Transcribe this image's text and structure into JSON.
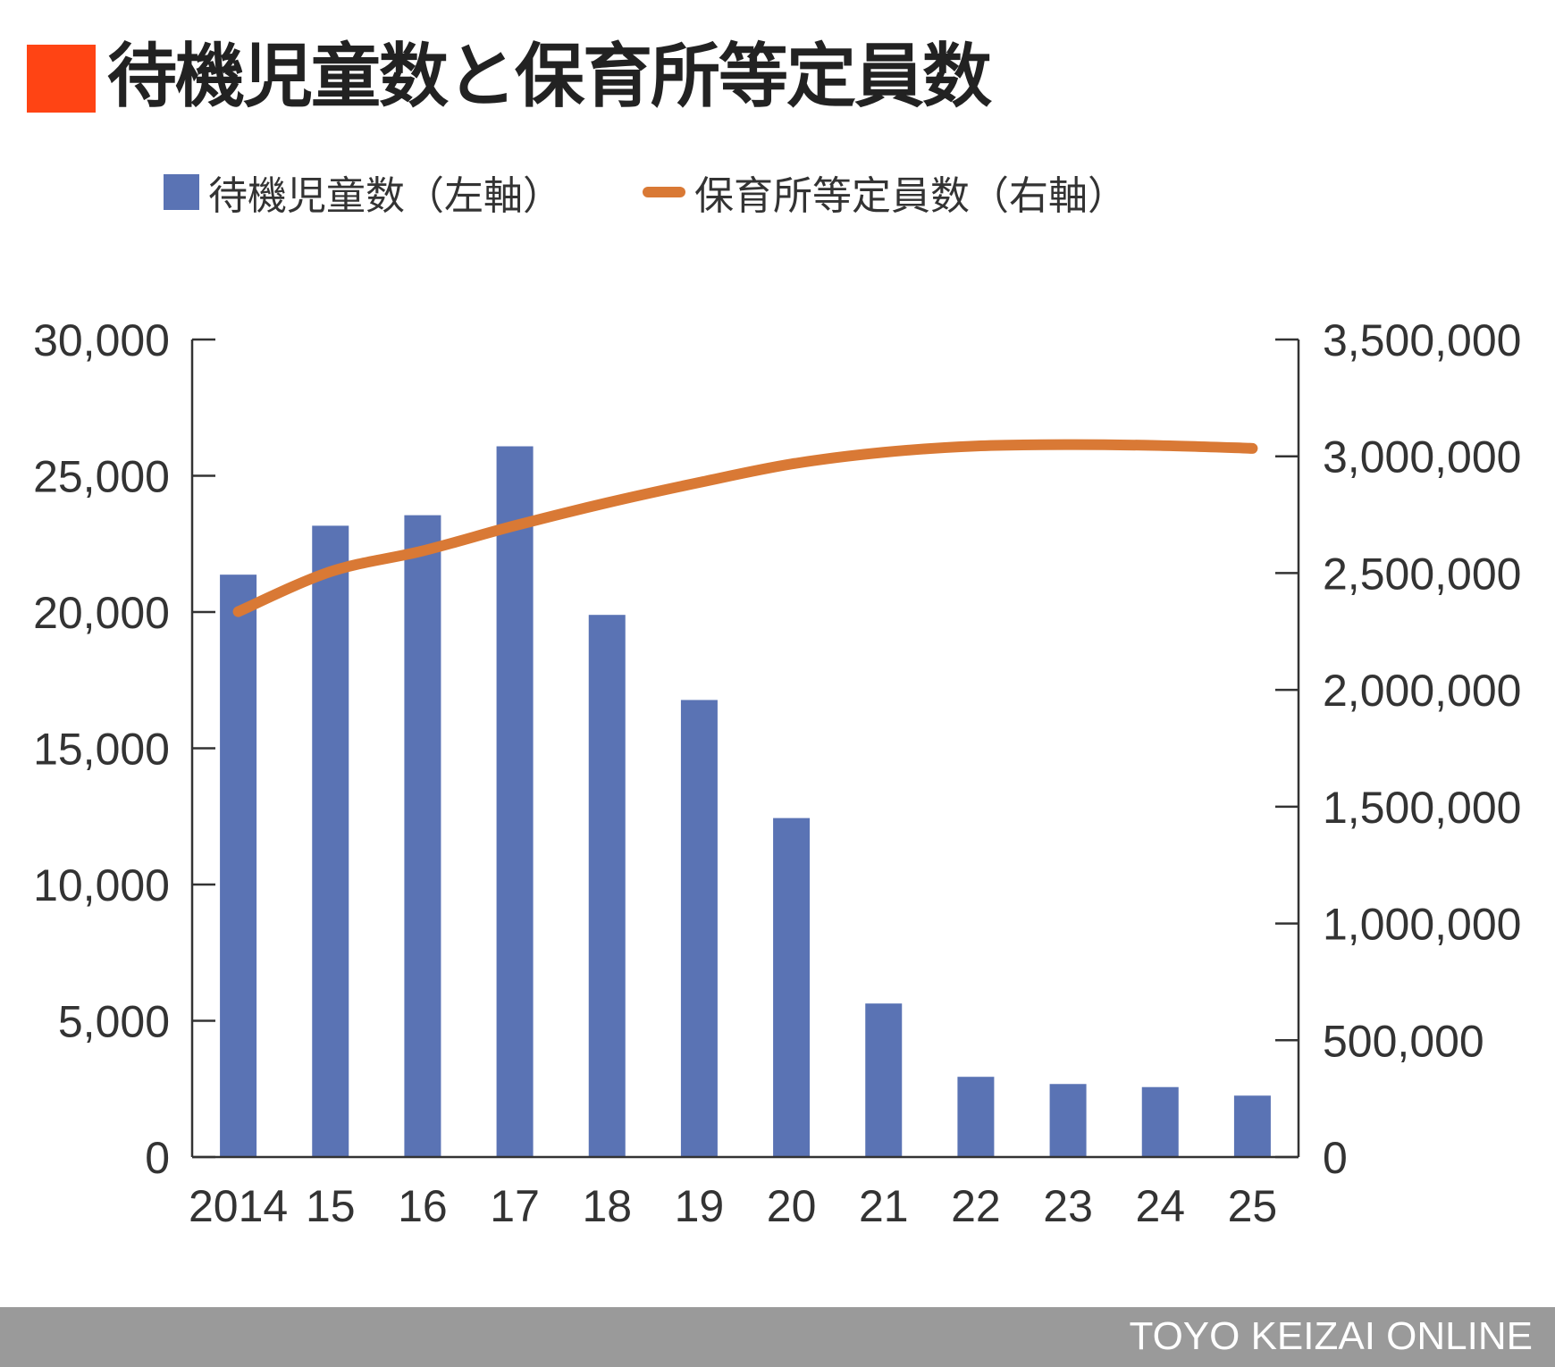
{
  "title": "待機児童数と保育所等定員数",
  "legend": {
    "bar_label": "待機児童数（左軸）",
    "line_label": "保育所等定員数（右軸）"
  },
  "footer": {
    "text": "TOYO KEIZAI ONLINE"
  },
  "colors": {
    "title_mark": "#FF4414",
    "bar": "#5A73B4",
    "line": "#D97935",
    "axis": "#333333",
    "footer_bg": "#9A9A9A"
  },
  "chart_data": {
    "type": "bar",
    "categories": [
      "2014",
      "15",
      "16",
      "17",
      "18",
      "19",
      "20",
      "21",
      "22",
      "23",
      "24",
      "25"
    ],
    "series": [
      {
        "name": "待機児童数（左軸）",
        "type": "bar",
        "axis": "left",
        "values": [
          21371,
          23167,
          23553,
          26081,
          19895,
          16772,
          12439,
          5634,
          2944,
          2680,
          2567,
          2254
        ]
      },
      {
        "name": "保育所等定員数（右軸）",
        "type": "line",
        "axis": "right",
        "values": [
          2335000,
          2506000,
          2595000,
          2703000,
          2801000,
          2888000,
          2967000,
          3017000,
          3044000,
          3050000,
          3046000,
          3034000
        ]
      }
    ],
    "y_left": {
      "ylim": [
        0,
        30000
      ],
      "ticks": [
        0,
        5000,
        10000,
        15000,
        20000,
        25000,
        30000
      ],
      "tick_labels": [
        "0",
        "5,000",
        "10,000",
        "15,000",
        "20,000",
        "25,000",
        "30,000"
      ]
    },
    "y_right": {
      "ylim": [
        0,
        3500000
      ],
      "ticks": [
        0,
        500000,
        1000000,
        1500000,
        2000000,
        2500000,
        3000000,
        3500000
      ],
      "tick_labels": [
        "0",
        "500,000",
        "1,000,000",
        "1,500,000",
        "2,000,000",
        "2,500,000",
        "3,000,000",
        "3,500,000"
      ]
    },
    "xlabel": "",
    "grid": false,
    "legend_position": "top-left"
  }
}
